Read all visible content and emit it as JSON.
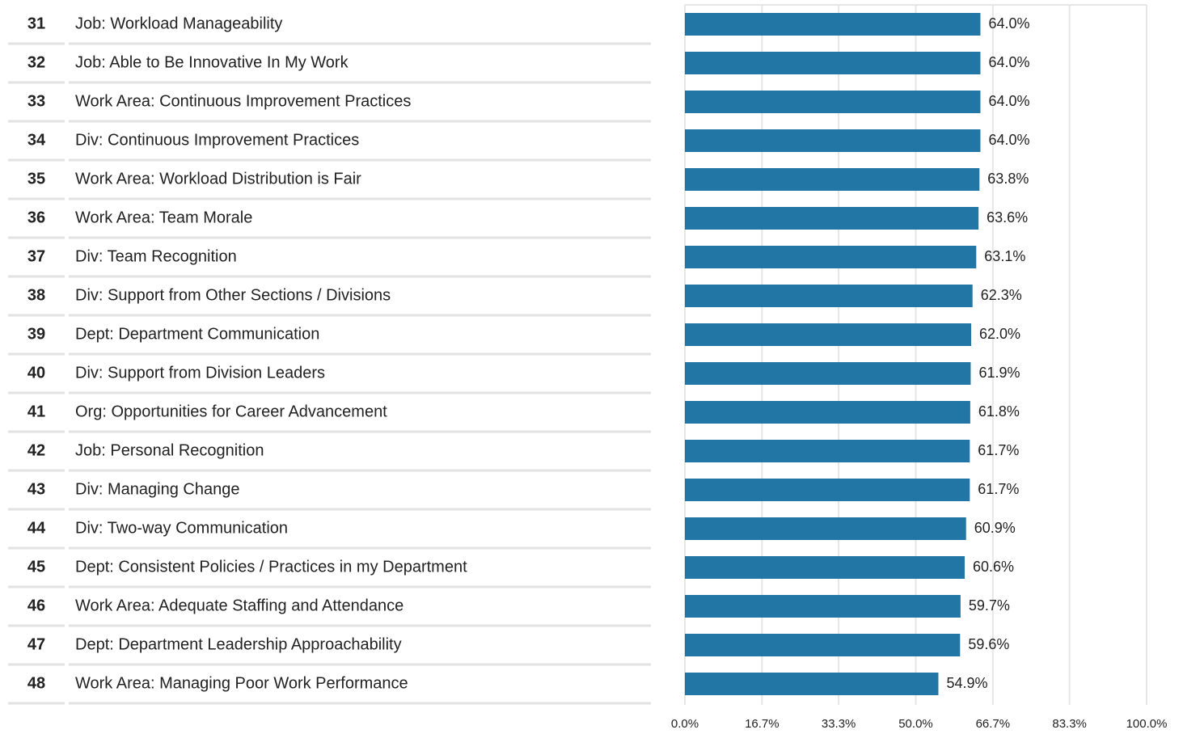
{
  "chart_data": {
    "type": "bar",
    "orientation": "horizontal",
    "ranks": [
      31,
      32,
      33,
      34,
      35,
      36,
      37,
      38,
      39,
      40,
      41,
      42,
      43,
      44,
      45,
      46,
      47,
      48
    ],
    "categories": [
      "Job: Workload Manageability",
      "Job: Able to Be Innovative In My Work",
      "Work Area: Continuous Improvement Practices",
      "Div: Continuous Improvement Practices",
      "Work Area: Workload Distribution is Fair",
      "Work Area: Team Morale",
      "Div: Team Recognition",
      "Div: Support from Other Sections / Divisions",
      "Dept: Department Communication",
      "Div: Support from Division Leaders",
      "Org: Opportunities for Career Advancement",
      "Job: Personal Recognition",
      "Div: Managing Change",
      "Div: Two-way Communication",
      "Dept: Consistent Policies / Practices in my Department",
      "Work Area: Adequate Staffing and Attendance",
      "Dept: Department Leadership Approachability",
      "Work Area: Managing Poor Work Performance"
    ],
    "values": [
      64.0,
      64.0,
      64.0,
      64.0,
      63.8,
      63.6,
      63.1,
      62.3,
      62.0,
      61.9,
      61.8,
      61.7,
      61.7,
      60.9,
      60.6,
      59.7,
      59.6,
      54.9
    ],
    "value_labels": [
      "64.0%",
      "64.0%",
      "64.0%",
      "64.0%",
      "63.8%",
      "63.6%",
      "63.1%",
      "62.3%",
      "62.0%",
      "61.9%",
      "61.8%",
      "61.7%",
      "61.7%",
      "60.9%",
      "60.6%",
      "59.7%",
      "59.6%",
      "54.9%"
    ],
    "color": "#2176a5",
    "xlim": [
      0,
      100
    ],
    "xticks": [
      {
        "value": 0,
        "label": "0.0%"
      },
      {
        "value": 16.7,
        "label": "16.7%"
      },
      {
        "value": 33.3,
        "label": "33.3%"
      },
      {
        "value": 50,
        "label": "50.0%"
      },
      {
        "value": 66.7,
        "label": "66.7%"
      },
      {
        "value": 83.3,
        "label": "83.3%"
      },
      {
        "value": 100,
        "label": "100.0%"
      }
    ],
    "grid": true
  }
}
